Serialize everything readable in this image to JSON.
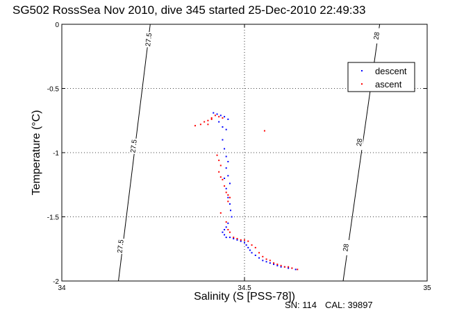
{
  "chart_data": {
    "type": "scatter",
    "title": "SG502 RossSea Nov 2010, dive 345 started 25-Dec-2010 22:49:33",
    "xlabel": "Salinity (S [PSS-78])",
    "ylabel": "Temperature (°C)",
    "xlim": [
      34,
      35
    ],
    "ylim": [
      -2,
      0
    ],
    "xticks": [
      {
        "value": 34,
        "label": "34"
      },
      {
        "value": 34.5,
        "label": "34.5"
      },
      {
        "value": 35,
        "label": "35"
      }
    ],
    "yticks": [
      {
        "value": 0,
        "label": "0"
      },
      {
        "value": -0.5,
        "label": "-0.5"
      },
      {
        "value": -1,
        "label": "-1"
      },
      {
        "value": -1.5,
        "label": "-1.5"
      },
      {
        "value": -2,
        "label": "-2"
      }
    ],
    "grid": true,
    "legend_position": "top-right",
    "contours": [
      {
        "label": "27.5",
        "points": [
          [
            34.242,
            0
          ],
          [
            34.155,
            -2
          ]
        ],
        "label_positions": [
          [
            34.238,
            -0.12
          ],
          [
            34.197,
            -0.95
          ],
          [
            34.161,
            -1.73
          ]
        ]
      },
      {
        "label": "28",
        "points": [
          [
            34.87,
            0
          ],
          [
            34.77,
            -2
          ]
        ],
        "label_positions": [
          [
            34.862,
            -0.09
          ],
          [
            34.815,
            -0.92
          ],
          [
            34.778,
            -1.74
          ]
        ]
      }
    ],
    "series": [
      {
        "name": "descent",
        "color": "#0000ff",
        "points": [
          [
            34.415,
            -0.69
          ],
          [
            34.425,
            -0.7
          ],
          [
            34.435,
            -0.71
          ],
          [
            34.445,
            -0.72
          ],
          [
            34.455,
            -0.74
          ],
          [
            34.43,
            -0.76
          ],
          [
            34.44,
            -0.8
          ],
          [
            34.45,
            -0.82
          ],
          [
            34.44,
            -0.9
          ],
          [
            34.445,
            -0.97
          ],
          [
            34.45,
            -1.03
          ],
          [
            34.455,
            -1.07
          ],
          [
            34.45,
            -1.12
          ],
          [
            34.455,
            -1.18
          ],
          [
            34.46,
            -1.24
          ],
          [
            34.445,
            -1.2
          ],
          [
            34.45,
            -1.28
          ],
          [
            34.455,
            -1.35
          ],
          [
            34.46,
            -1.4
          ],
          [
            34.462,
            -1.45
          ],
          [
            34.465,
            -1.5
          ],
          [
            34.455,
            -1.55
          ],
          [
            34.45,
            -1.58
          ],
          [
            34.445,
            -1.6
          ],
          [
            34.44,
            -1.62
          ],
          [
            34.445,
            -1.64
          ],
          [
            34.45,
            -1.66
          ],
          [
            34.46,
            -1.66
          ],
          [
            34.47,
            -1.67
          ],
          [
            34.48,
            -1.68
          ],
          [
            34.49,
            -1.69
          ],
          [
            34.5,
            -1.7
          ],
          [
            34.505,
            -1.72
          ],
          [
            34.51,
            -1.74
          ],
          [
            34.515,
            -1.76
          ],
          [
            34.52,
            -1.78
          ],
          [
            34.53,
            -1.8
          ],
          [
            34.54,
            -1.82
          ],
          [
            34.55,
            -1.84
          ],
          [
            34.56,
            -1.85
          ],
          [
            34.57,
            -1.86
          ],
          [
            34.58,
            -1.87
          ],
          [
            34.59,
            -1.88
          ],
          [
            34.6,
            -1.89
          ],
          [
            34.61,
            -1.89
          ],
          [
            34.62,
            -1.9
          ],
          [
            34.63,
            -1.9
          ],
          [
            34.64,
            -1.91
          ]
        ]
      },
      {
        "name": "ascent",
        "color": "#ff0000",
        "points": [
          [
            34.365,
            -0.79
          ],
          [
            34.38,
            -0.78
          ],
          [
            34.39,
            -0.76
          ],
          [
            34.4,
            -0.75
          ],
          [
            34.41,
            -0.73
          ],
          [
            34.42,
            -0.71
          ],
          [
            34.43,
            -0.72
          ],
          [
            34.44,
            -0.73
          ],
          [
            34.41,
            -0.74
          ],
          [
            34.4,
            -0.78
          ],
          [
            34.555,
            -0.83
          ],
          [
            34.425,
            -1.02
          ],
          [
            34.43,
            -1.06
          ],
          [
            34.435,
            -1.1
          ],
          [
            34.43,
            -1.15
          ],
          [
            34.435,
            -1.19
          ],
          [
            34.44,
            -1.21
          ],
          [
            34.445,
            -1.26
          ],
          [
            34.45,
            -1.31
          ],
          [
            34.455,
            -1.33
          ],
          [
            34.46,
            -1.35
          ],
          [
            34.455,
            -1.38
          ],
          [
            34.435,
            -1.47
          ],
          [
            34.45,
            -1.54
          ],
          [
            34.455,
            -1.6
          ],
          [
            34.46,
            -1.62
          ],
          [
            34.47,
            -1.66
          ],
          [
            34.48,
            -1.67
          ],
          [
            34.49,
            -1.68
          ],
          [
            34.5,
            -1.68
          ],
          [
            34.51,
            -1.69
          ],
          [
            34.52,
            -1.72
          ],
          [
            34.53,
            -1.74
          ],
          [
            34.54,
            -1.78
          ],
          [
            34.55,
            -1.81
          ],
          [
            34.56,
            -1.83
          ],
          [
            34.57,
            -1.84
          ],
          [
            34.58,
            -1.86
          ],
          [
            34.59,
            -1.87
          ],
          [
            34.6,
            -1.88
          ],
          [
            34.61,
            -1.89
          ],
          [
            34.62,
            -1.89
          ],
          [
            34.63,
            -1.9
          ],
          [
            34.645,
            -1.91
          ]
        ]
      }
    ]
  },
  "footer": {
    "serial": "SN: 114",
    "cal": "CAL: 39897"
  }
}
